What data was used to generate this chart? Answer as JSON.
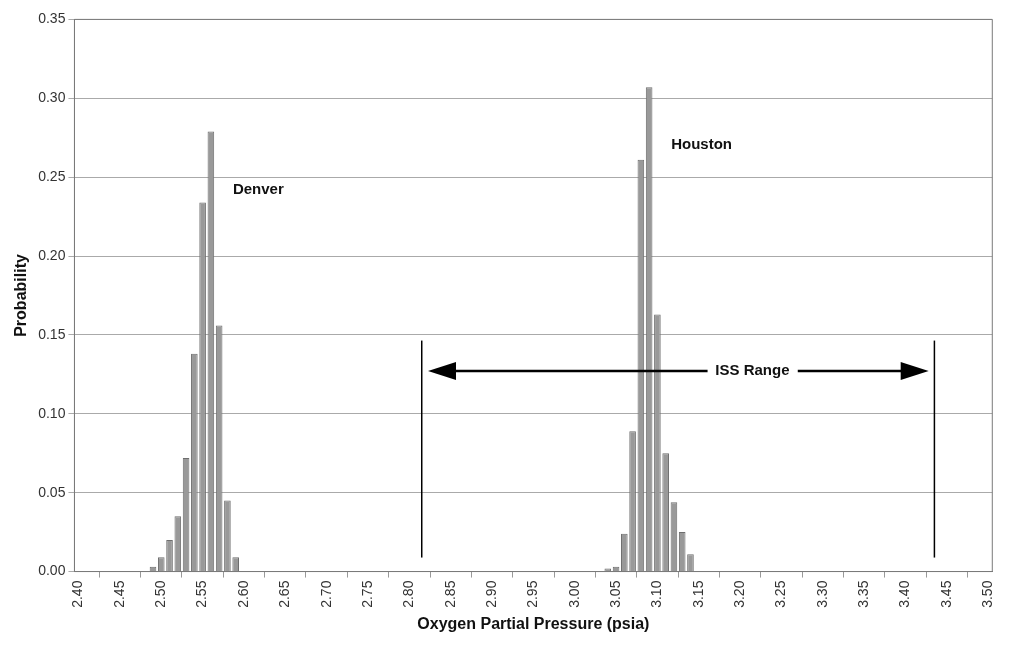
{
  "chart_data": {
    "type": "bar",
    "xlabel": "Oxygen Partial Pressure (psia)",
    "ylabel": "Probability",
    "series": [
      {
        "name": "Denver",
        "color": "#999999",
        "x": [
          2.4,
          2.41,
          2.42,
          2.43,
          2.44,
          2.45,
          2.46,
          2.47,
          2.48,
          2.49,
          2.5,
          2.51,
          2.52,
          2.53,
          2.54,
          2.55,
          2.56,
          2.57,
          2.58,
          2.59,
          2.6,
          2.61,
          2.62,
          2.63,
          2.64,
          2.65,
          2.66,
          2.67,
          2.68,
          2.69,
          2.7,
          2.71,
          2.72,
          2.73,
          2.74,
          2.75,
          2.76,
          2.77,
          2.78,
          2.79,
          2.8,
          2.81,
          2.82,
          2.83,
          2.84,
          2.85,
          2.86,
          2.87,
          2.88,
          2.89,
          2.9,
          2.91,
          2.92,
          2.93,
          2.94,
          2.95
        ],
        "values": [
          0,
          0,
          0,
          0,
          0,
          0,
          0,
          0,
          0,
          0.003,
          0.009,
          0.02,
          0.035,
          0.072,
          0.138,
          0.234,
          0.279,
          0.156,
          0.045,
          0.009,
          0,
          0,
          0,
          0,
          0,
          0,
          0,
          0,
          0,
          0,
          0,
          0,
          0,
          0,
          0,
          0,
          0,
          0,
          0,
          0,
          0,
          0,
          0,
          0,
          0,
          0,
          0,
          0,
          0,
          0,
          0,
          0,
          0,
          0,
          0,
          0
        ]
      },
      {
        "name": "Houston",
        "color": "#999999",
        "x": [
          2.96,
          2.97,
          2.98,
          2.99,
          3.0,
          3.01,
          3.02,
          3.03,
          3.04,
          3.05,
          3.06,
          3.07,
          3.08,
          3.09,
          3.1,
          3.11,
          3.12,
          3.13,
          3.14,
          3.15,
          3.16,
          3.17,
          3.18,
          3.19,
          3.2,
          3.21,
          3.22,
          3.23,
          3.24,
          3.25,
          3.26,
          3.27,
          3.28,
          3.29,
          3.3,
          3.31,
          3.32,
          3.33,
          3.34,
          3.35,
          3.36,
          3.37,
          3.38,
          3.39,
          3.4,
          3.41,
          3.42,
          3.43,
          3.44,
          3.45,
          3.46,
          3.47,
          3.48,
          3.49,
          3.5
        ],
        "values": [
          0,
          0,
          0,
          0,
          0,
          0,
          0,
          0,
          0.002,
          0.003,
          0.024,
          0.089,
          0.261,
          0.307,
          0.163,
          0.075,
          0.044,
          0.025,
          0.011,
          0,
          0,
          0,
          0,
          0,
          0,
          0,
          0,
          0,
          0,
          0,
          0,
          0,
          0,
          0,
          0,
          0,
          0,
          0,
          0,
          0,
          0,
          0,
          0,
          0,
          0,
          0,
          0,
          0,
          0,
          0,
          0,
          0,
          0,
          0,
          0
        ]
      }
    ],
    "xlim": [
      2.395,
      3.505
    ],
    "xticks": [
      {
        "value": 2.4,
        "label": "2.40"
      },
      {
        "value": 2.45,
        "label": "2.45"
      },
      {
        "value": 2.5,
        "label": "2.50"
      },
      {
        "value": 2.55,
        "label": "2.55"
      },
      {
        "value": 2.6,
        "label": "2.60"
      },
      {
        "value": 2.65,
        "label": "2.65"
      },
      {
        "value": 2.7,
        "label": "2.70"
      },
      {
        "value": 2.75,
        "label": "2.75"
      },
      {
        "value": 2.8,
        "label": "2.80"
      },
      {
        "value": 2.85,
        "label": "2.85"
      },
      {
        "value": 2.9,
        "label": "2.90"
      },
      {
        "value": 2.95,
        "label": "2.95"
      },
      {
        "value": 3.0,
        "label": "3.00"
      },
      {
        "value": 3.05,
        "label": "3.05"
      },
      {
        "value": 3.1,
        "label": "3.10"
      },
      {
        "value": 3.15,
        "label": "3.15"
      },
      {
        "value": 3.2,
        "label": "3.20"
      },
      {
        "value": 3.25,
        "label": "3.25"
      },
      {
        "value": 3.3,
        "label": "3.30"
      },
      {
        "value": 3.35,
        "label": "3.35"
      },
      {
        "value": 3.4,
        "label": "3.40"
      },
      {
        "value": 3.45,
        "label": "3.45"
      },
      {
        "value": 3.5,
        "label": "3.50"
      }
    ],
    "ylim": [
      0,
      0.35
    ],
    "yticks": [
      {
        "value": 0,
        "label": "0.00"
      },
      {
        "value": 0.05,
        "label": "0.05"
      },
      {
        "value": 0.1,
        "label": "0.10"
      },
      {
        "value": 0.15,
        "label": "0.15"
      },
      {
        "value": 0.2,
        "label": "0.20"
      },
      {
        "value": 0.25,
        "label": "0.25"
      },
      {
        "value": 0.3,
        "label": "0.30"
      },
      {
        "value": 0.35,
        "label": "0.35"
      }
    ],
    "grid": "y",
    "ref_lines": [
      {
        "axis": "x",
        "value": 2.815,
        "color": "#000000"
      },
      {
        "axis": "x",
        "value": 3.435,
        "color": "#000000"
      }
    ],
    "annotations": [
      "ISS Range"
    ]
  }
}
